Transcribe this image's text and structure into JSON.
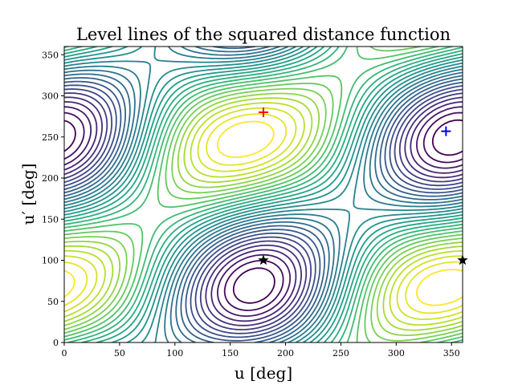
{
  "chart_data": {
    "type": "contour",
    "title": "Level lines of the squared distance function",
    "xlabel": "u [deg]",
    "ylabel": "u′ [deg]",
    "xlim": [
      0,
      360
    ],
    "ylim": [
      0,
      360
    ],
    "xticks": [
      0,
      50,
      100,
      150,
      200,
      250,
      300,
      350
    ],
    "yticks": [
      0,
      50,
      100,
      150,
      200,
      250,
      300,
      350
    ],
    "colormap": "viridis",
    "grid": false,
    "markers": [
      {
        "symbol": "plus",
        "color": "#ff0000",
        "x": 180,
        "y": 280
      },
      {
        "symbol": "plus",
        "color": "#0000ff",
        "x": 345,
        "y": 257
      },
      {
        "symbol": "star",
        "color": "#000000",
        "x": 180,
        "y": 100
      },
      {
        "symbol": "star",
        "color": "#000000",
        "x": 360,
        "y": 100
      }
    ]
  }
}
